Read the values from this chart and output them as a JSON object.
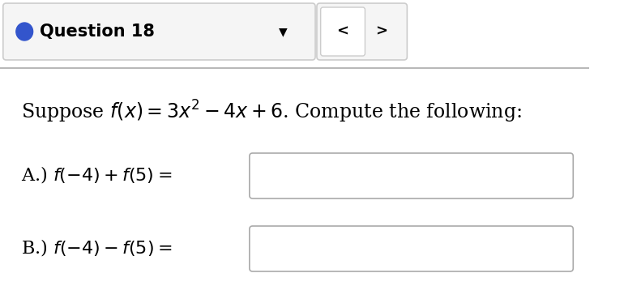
{
  "bg_color": "#ffffff",
  "header_bg": "#f5f5f5",
  "header_border_color": "#cccccc",
  "header_text": "Question 18",
  "header_dot_color": "#3355cc",
  "nav_bg": "#e0e0e0",
  "nav_left_bg": "#ffffff",
  "separator_color": "#aaaaaa",
  "main_formula": "Suppose $f(x) = 3x^2 - 4x + 6$. Compute the following:",
  "part_a_label": "A.) $f(-4) + f(5) =$",
  "part_b_label": "B.) $f(-4) - f(5) =$",
  "input_box_color": "#ffffff",
  "input_box_border": "#aaaaaa",
  "text_color": "#000000",
  "formula_fontsize": 17,
  "label_fontsize": 16,
  "header_fontsize": 15
}
